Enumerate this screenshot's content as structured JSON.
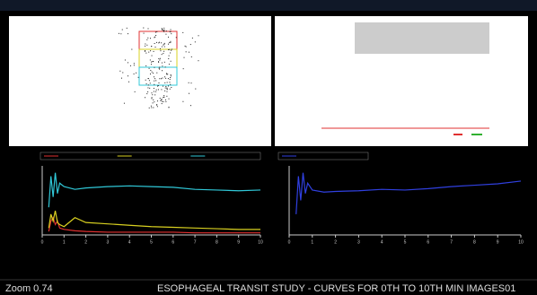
{
  "status": {
    "zoom": "Zoom 0.74",
    "title": "ESOPHAGEAL TRANSIT STUDY - CURVES FOR 0TH TO 10TH MIN IMAGES01"
  },
  "chart_data": [
    {
      "type": "line",
      "x": [
        0.3,
        0.4,
        0.5,
        0.6,
        0.7,
        0.8,
        1,
        1.5,
        2,
        3,
        4,
        5,
        6,
        7,
        8,
        9,
        10
      ],
      "series": [
        {
          "color": "#e03030",
          "values": [
            5,
            20,
            25,
            15,
            20,
            10,
            8,
            6,
            5,
            4,
            4,
            4,
            4,
            3,
            3,
            3,
            3
          ]
        },
        {
          "color": "#d8d020",
          "values": [
            10,
            30,
            20,
            35,
            18,
            15,
            12,
            25,
            18,
            16,
            14,
            12,
            11,
            10,
            9,
            8,
            8
          ]
        },
        {
          "color": "#30c8d8",
          "values": [
            40,
            85,
            55,
            90,
            60,
            75,
            70,
            66,
            68,
            70,
            71,
            70,
            69,
            66,
            65,
            64,
            65
          ]
        }
      ],
      "xlim": [
        0,
        10
      ],
      "xticks": [
        0,
        1,
        2,
        3,
        4,
        5,
        6,
        7,
        8,
        9,
        10
      ],
      "ylim": [
        0,
        100
      ]
    },
    {
      "type": "line",
      "x": [
        0.3,
        0.4,
        0.5,
        0.6,
        0.7,
        0.8,
        1,
        1.5,
        2,
        3,
        4,
        5,
        6,
        7,
        8,
        9,
        10
      ],
      "series": [
        {
          "color": "#3040e0",
          "values": [
            30,
            85,
            50,
            90,
            60,
            75,
            65,
            62,
            63,
            64,
            66,
            65,
            67,
            70,
            72,
            74,
            78
          ]
        }
      ],
      "xlim": [
        0,
        10
      ],
      "xticks": [
        0,
        1,
        2,
        3,
        4,
        5,
        6,
        7,
        8,
        9,
        10
      ],
      "ylim": [
        0,
        100
      ]
    }
  ]
}
